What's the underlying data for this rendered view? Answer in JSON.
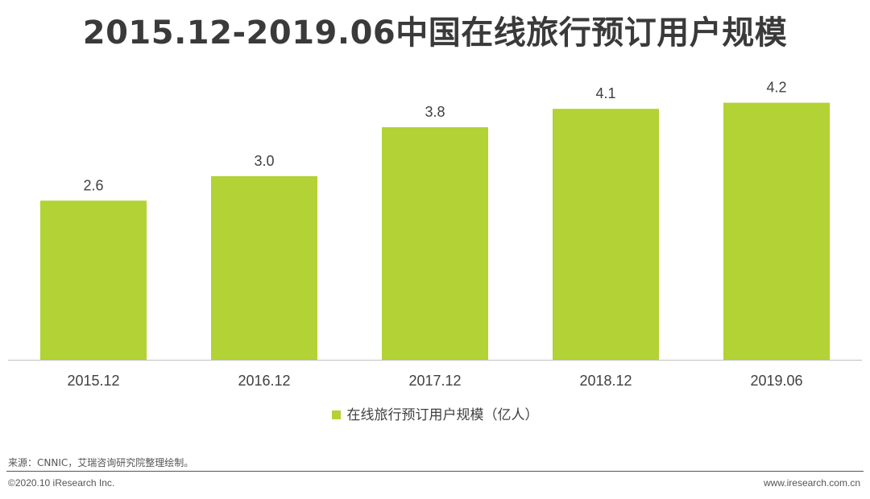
{
  "title": "2015.12-2019.06中国在线旅行预订用户规模",
  "chart_data": {
    "type": "bar",
    "categories": [
      "2015.12",
      "2016.12",
      "2017.12",
      "2018.12",
      "2019.06"
    ],
    "series": [
      {
        "name": "在线旅行预订用户规模（亿人）",
        "values": [
          2.6,
          3.0,
          3.8,
          4.1,
          4.2
        ],
        "color": "#b2d235"
      }
    ],
    "data_labels": [
      "2.6",
      "3.0",
      "3.8",
      "4.1",
      "4.2"
    ],
    "ylim": [
      0,
      4.8
    ],
    "grid": false,
    "legend_position": "bottom-center"
  },
  "footer": {
    "source": "来源：CNNIC，艾瑞咨询研究院整理绘制。",
    "copyright": "©2020.10 iResearch Inc.",
    "website": "www.iresearch.com.cn"
  }
}
